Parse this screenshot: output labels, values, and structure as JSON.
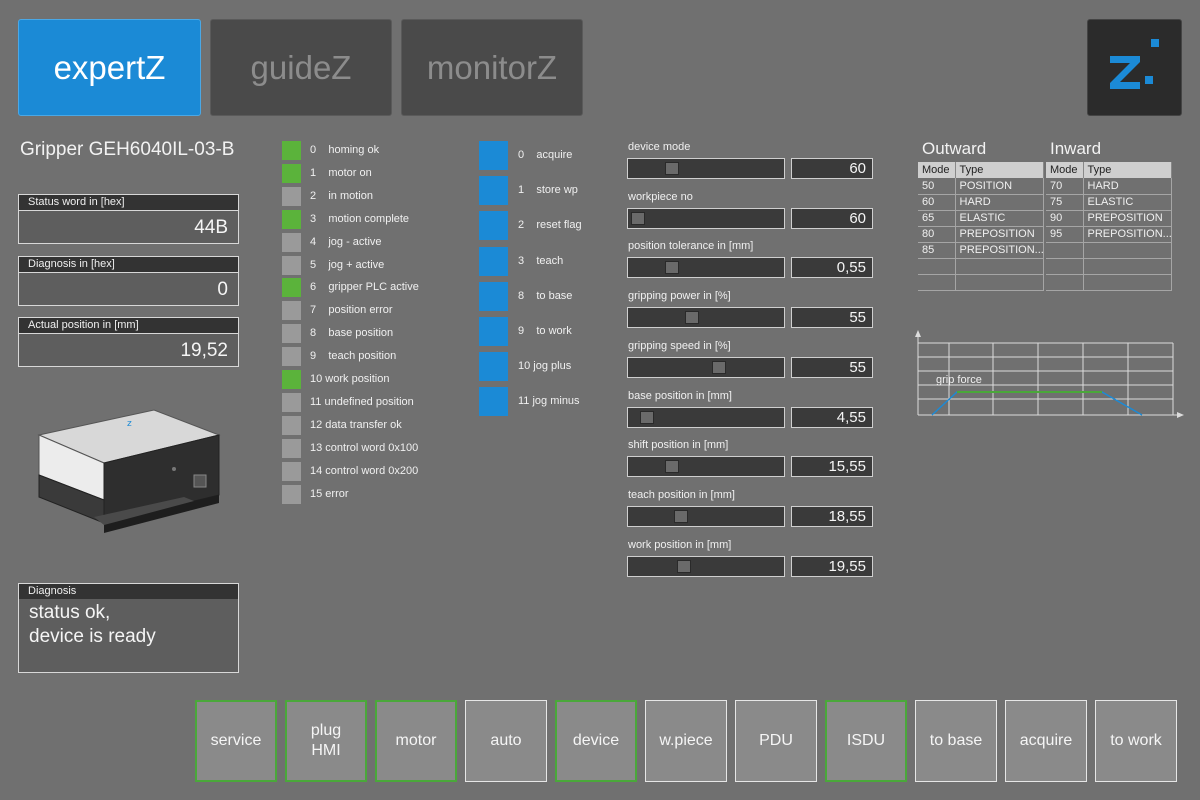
{
  "tabs": [
    {
      "label": "expertZ",
      "active": true
    },
    {
      "label": "guideZ",
      "active": false
    },
    {
      "label": "monitorZ",
      "active": false
    }
  ],
  "logo_icon": "brand-z-icon",
  "device": {
    "title": "Gripper GEH6040IL-03-B",
    "status_word_label": "Status word in [hex]",
    "status_word_value": "44B",
    "diagnosis_label": "Diagnosis in [hex]",
    "diagnosis_value": "0",
    "actual_position_label": "Actual position in [mm]",
    "actual_position_value": "19,52",
    "diag_text_label": "Diagnosis",
    "diag_text_line1": "status ok,",
    "diag_text_line2": "device is ready"
  },
  "status_bits": [
    {
      "label": "0    homing ok",
      "on": true
    },
    {
      "label": "1    motor on",
      "on": true
    },
    {
      "label": "2    in motion",
      "on": false
    },
    {
      "label": "3    motion complete",
      "on": true
    },
    {
      "label": "4    jog - active",
      "on": false
    },
    {
      "label": "5    jog + active",
      "on": false
    },
    {
      "label": "6    gripper PLC active",
      "on": true
    },
    {
      "label": "7    position error",
      "on": false
    },
    {
      "label": "8    base position",
      "on": false
    },
    {
      "label": "9    teach position",
      "on": false
    },
    {
      "label": "10 work position",
      "on": true
    },
    {
      "label": "11 undefined position",
      "on": false
    },
    {
      "label": "12 data transfer ok",
      "on": false
    },
    {
      "label": "13 control word 0x100",
      "on": false
    },
    {
      "label": "14 control word 0x200",
      "on": false
    },
    {
      "label": "15 error",
      "on": false
    }
  ],
  "control_bits": [
    {
      "label": "0    acquire"
    },
    {
      "label": "1    store wp"
    },
    {
      "label": "2    reset flag"
    },
    {
      "label": "3    teach"
    },
    {
      "label": "8    to base"
    },
    {
      "label": "9    to work"
    },
    {
      "label": "10 jog plus"
    },
    {
      "label": "11 jog minus"
    }
  ],
  "parameters": [
    {
      "label": "device mode",
      "value": "60",
      "level": 0.25
    },
    {
      "label": "workpiece no",
      "value": "60",
      "level": 0.0
    },
    {
      "label": "position tolerance in [mm]",
      "value": "0,55",
      "level": 0.25
    },
    {
      "label": "gripping power in [%]",
      "value": "55",
      "level": 0.4
    },
    {
      "label": "gripping speed in [%]",
      "value": "55",
      "level": 0.6
    },
    {
      "label": "base position in [mm]",
      "value": "4,55",
      "level": 0.07
    },
    {
      "label": "shift position in [mm]",
      "value": "15,55",
      "level": 0.25
    },
    {
      "label": "teach position in [mm]",
      "value": "18,55",
      "level": 0.32
    },
    {
      "label": "work position in [mm]",
      "value": "19,55",
      "level": 0.34
    }
  ],
  "outward": {
    "title": "Outward",
    "head_mode": "Mode",
    "head_type": "Type",
    "rows": [
      [
        "50",
        "POSITION"
      ],
      [
        "60",
        "HARD"
      ],
      [
        "65",
        "ELASTIC"
      ],
      [
        "80",
        "PREPOSITION"
      ],
      [
        "85",
        "PREPOSITION..."
      ]
    ]
  },
  "inward": {
    "title": "Inward",
    "head_mode": "Mode",
    "head_type": "Type",
    "rows": [
      [
        "70",
        "HARD"
      ],
      [
        "75",
        "ELASTIC"
      ],
      [
        "90",
        "PREPOSITION"
      ],
      [
        "95",
        "PREPOSITION..."
      ]
    ]
  },
  "grip_chart_label": "grip force",
  "bottom_buttons": [
    {
      "label": "service",
      "green": true
    },
    {
      "label": "plug\nHMI",
      "green": true
    },
    {
      "label": "motor",
      "green": true
    },
    {
      "label": "auto",
      "green": false
    },
    {
      "label": "device",
      "green": true
    },
    {
      "label": "w.piece",
      "green": false
    },
    {
      "label": "PDU",
      "green": false
    },
    {
      "label": "ISDU",
      "green": true
    },
    {
      "label": "to base",
      "green": false
    },
    {
      "label": "acquire",
      "green": false
    },
    {
      "label": "to work",
      "green": false
    }
  ],
  "colors": {
    "accent_blue": "#1b8ad6",
    "led_green": "#5bb33b",
    "led_off": "#9a9a9a",
    "background": "#707070"
  }
}
